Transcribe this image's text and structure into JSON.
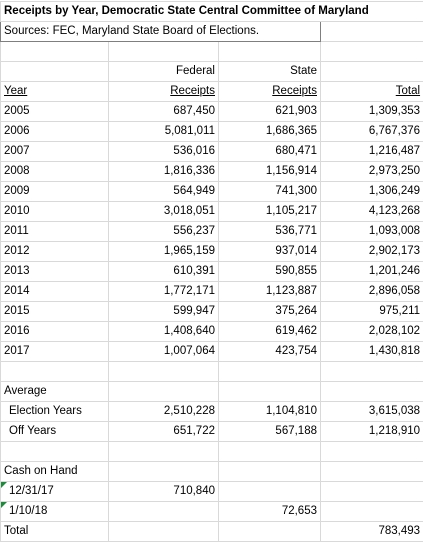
{
  "title": "Receipts by Year, Democratic State Central Committee of Maryland",
  "sources": "Sources: FEC, Maryland State Board of Elections.",
  "header": {
    "federal": "Federal",
    "state": "State"
  },
  "columns": [
    "Year",
    "Receipts",
    "Receipts",
    "Total"
  ],
  "rows": [
    [
      "2005",
      "687,450",
      "621,903",
      "1,309,353"
    ],
    [
      "2006",
      "5,081,011",
      "1,686,365",
      "6,767,376"
    ],
    [
      "2007",
      "536,016",
      "680,471",
      "1,216,487"
    ],
    [
      "2008",
      "1,816,336",
      "1,156,914",
      "2,973,250"
    ],
    [
      "2009",
      "564,949",
      "741,300",
      "1,306,249"
    ],
    [
      "2010",
      "3,018,051",
      "1,105,217",
      "4,123,268"
    ],
    [
      "2011",
      "556,237",
      "536,771",
      "1,093,008"
    ],
    [
      "2012",
      "1,965,159",
      "937,014",
      "2,902,173"
    ],
    [
      "2013",
      "610,391",
      "590,855",
      "1,201,246"
    ],
    [
      "2014",
      "1,772,171",
      "1,123,887",
      "2,896,058"
    ],
    [
      "2015",
      "599,947",
      "375,264",
      "975,211"
    ],
    [
      "2016",
      "1,408,640",
      "619,462",
      "2,028,102"
    ],
    [
      "2017",
      "1,007,064",
      "423,754",
      "1,430,818"
    ]
  ],
  "average": {
    "label": "Average",
    "rows": [
      [
        "Election Years",
        "2,510,228",
        "1,104,810",
        "3,615,038"
      ],
      [
        "Off Years",
        "651,722",
        "567,188",
        "1,218,910"
      ]
    ]
  },
  "cash_on_hand": {
    "label": "Cash on Hand",
    "first": {
      "date": "12/31/17",
      "federal": "710,840"
    },
    "second": {
      "date": "1/10/18",
      "state": "72,653"
    },
    "total": {
      "label": "Total",
      "value": "783,493"
    }
  }
}
